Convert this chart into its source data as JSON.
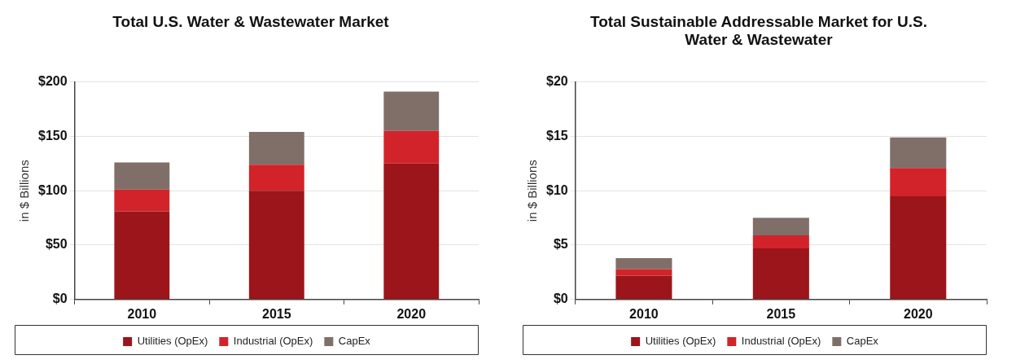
{
  "chart_data": [
    {
      "type": "bar",
      "title": "Total U.S. Water & Wastewater Market",
      "ylabel": "in $ Billions",
      "categories": [
        "2010",
        "2015",
        "2020"
      ],
      "stacked": true,
      "series": [
        {
          "name": "Utilities (OpEx)",
          "color": "#9b151b",
          "values": [
            81,
            100,
            125
          ]
        },
        {
          "name": "Industrial (OpEx)",
          "color": "#d2232a",
          "values": [
            20,
            24,
            30
          ]
        },
        {
          "name": "CapEx",
          "color": "#7f6f68",
          "values": [
            25,
            30,
            36
          ]
        }
      ],
      "ylim": [
        0,
        200
      ],
      "yticks": [
        {
          "value": 0,
          "label": "$0"
        },
        {
          "value": 50,
          "label": "$50"
        },
        {
          "value": 100,
          "label": "$100"
        },
        {
          "value": 150,
          "label": "$150"
        },
        {
          "value": 200,
          "label": "$200"
        }
      ],
      "grid": "y",
      "legend": "bottom"
    },
    {
      "type": "bar",
      "title": "Total Sustainable Addressable Market for U.S. Water & Wastewater",
      "ylabel": "in $ Billions",
      "categories": [
        "2010",
        "2015",
        "2020"
      ],
      "stacked": true,
      "series": [
        {
          "name": "Utilities (OpEx)",
          "color": "#9b151b",
          "values": [
            2.2,
            4.7,
            9.5
          ]
        },
        {
          "name": "Industrial (OpEx)",
          "color": "#d2232a",
          "values": [
            0.6,
            1.2,
            2.6
          ]
        },
        {
          "name": "CapEx",
          "color": "#7f6f68",
          "values": [
            1.0,
            1.6,
            2.8
          ]
        }
      ],
      "ylim": [
        0,
        20
      ],
      "yticks": [
        {
          "value": 0,
          "label": "$0"
        },
        {
          "value": 5,
          "label": "$5"
        },
        {
          "value": 10,
          "label": "$10"
        },
        {
          "value": 15,
          "label": "$15"
        },
        {
          "value": 20,
          "label": "$20"
        }
      ],
      "grid": "y",
      "legend": "bottom"
    }
  ]
}
